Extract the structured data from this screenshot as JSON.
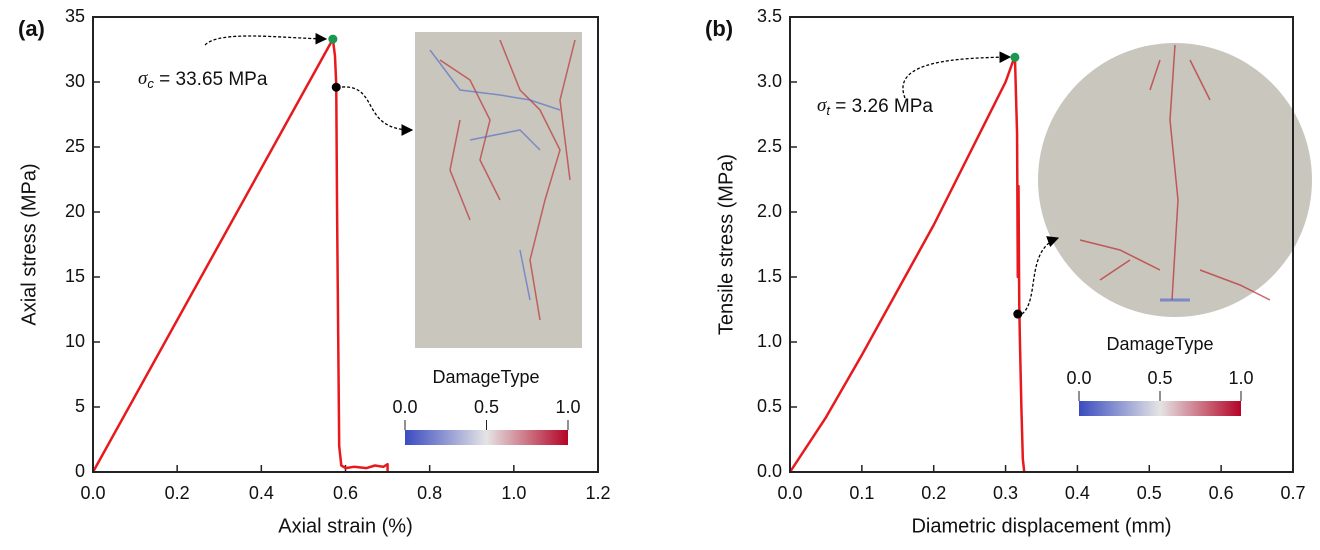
{
  "chart_data": [
    {
      "type": "line",
      "panel_label": "(a)",
      "xlabel": "Axial strain (%)",
      "ylabel": "Axial stress (MPa)",
      "xlim": [
        0,
        1.2
      ],
      "ylim": [
        0,
        35
      ],
      "xticks": [
        {
          "value": 0,
          "label": "0.0"
        },
        0.2,
        0.4,
        0.6,
        0.8,
        {
          "value": 1,
          "label": "1.0"
        },
        1.2
      ],
      "yticks": [
        0,
        5,
        10,
        15,
        20,
        25,
        30,
        35
      ],
      "series": [
        {
          "color": "#e8191d",
          "x": [
            0,
            0.57,
            0.575,
            0.578,
            0.58,
            0.585,
            0.59,
            0.6,
            0.62,
            0.65,
            0.67,
            0.69,
            0.7,
            0.7
          ],
          "values": [
            0,
            33.3,
            32,
            29.8,
            20,
            2,
            0.5,
            0.3,
            0.4,
            0.3,
            0.5,
            0.4,
            0.6,
            0
          ]
        }
      ],
      "points": [
        {
          "x": 0.57,
          "y": 33.3,
          "color": "#1a9850"
        },
        {
          "x": 0.578,
          "y": 29.6,
          "color": "#000000"
        }
      ],
      "annotation": {
        "symbol": "σ",
        "sub": "c",
        "text": " = 33.65 MPa"
      },
      "colorbar": {
        "title": "DamageType",
        "range": [
          0,
          1
        ],
        "ticks": [
          {
            "value": 0,
            "label": "0.0"
          },
          0.5,
          {
            "value": 1,
            "label": "1.0"
          }
        ]
      }
    },
    {
      "type": "line",
      "panel_label": "(b)",
      "xlabel": "Diametric displacement (mm)",
      "ylabel": "Tensile stress (MPa)",
      "xlim": [
        0,
        0.7
      ],
      "ylim": [
        0,
        3.5
      ],
      "xticks": [
        {
          "value": 0,
          "label": "0.0"
        },
        0.1,
        0.2,
        0.3,
        0.4,
        0.5,
        0.6,
        0.7
      ],
      "yticks": [
        {
          "value": 0,
          "label": "0.0"
        },
        0.5,
        {
          "value": 1,
          "label": "1.0"
        },
        1.5,
        {
          "value": 2,
          "label": "2.0"
        },
        2.5,
        {
          "value": 3,
          "label": "3.0"
        },
        3.5
      ],
      "series": [
        {
          "color": "#e8191d",
          "x": [
            0,
            0.05,
            0.1,
            0.15,
            0.2,
            0.25,
            0.3,
            0.313,
            0.316,
            0.317,
            0.318,
            0.319,
            0.32,
            0.322,
            0.324,
            0.326
          ],
          "values": [
            0,
            0.42,
            0.9,
            1.4,
            1.9,
            2.45,
            3.0,
            3.2,
            2.6,
            1.5,
            2.2,
            1.3,
            1.0,
            0.5,
            0.1,
            0
          ]
        }
      ],
      "points": [
        {
          "x": 0.313,
          "y": 3.19,
          "color": "#1a9850"
        },
        {
          "x": 0.317,
          "y": 1.215,
          "color": "#000000"
        }
      ],
      "annotation": {
        "symbol": "σ",
        "sub": "t",
        "text": " = 3.26 MPa"
      },
      "colorbar": {
        "title": "DamageType",
        "range": [
          0,
          1
        ],
        "ticks": [
          {
            "value": 0,
            "label": "0.0"
          },
          0.5,
          {
            "value": 1,
            "label": "1.0"
          }
        ]
      }
    }
  ]
}
